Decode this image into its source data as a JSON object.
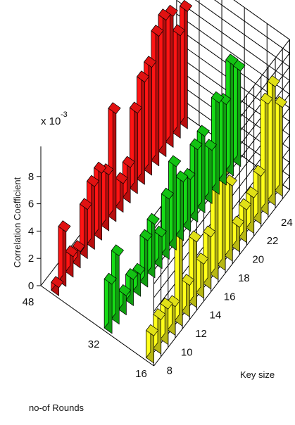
{
  "chart_data": {
    "type": "bar3d",
    "ylabel": "Correlation Coefficient",
    "xlabel": "Key size",
    "depth_label": "no-of Rounds",
    "exponent_base": "x 10",
    "exponent_power": "-3",
    "z_ticks": [
      "0",
      "2",
      "4",
      "6",
      "8"
    ],
    "zlim": [
      0,
      10
    ],
    "x_ticks": [
      "8",
      "10",
      "12",
      "14",
      "16",
      "18",
      "20",
      "22",
      "24"
    ],
    "depth_ticks": [
      "48",
      "32",
      "16"
    ],
    "x_range": [
      7,
      25
    ],
    "grid": true,
    "series": [
      {
        "name": "48",
        "color": "#ff1414",
        "x": [
          7,
          8,
          9,
          10,
          11,
          12,
          13,
          14,
          15,
          16,
          17,
          18,
          19,
          20,
          21,
          22,
          23,
          24,
          25
        ],
        "values": [
          0.6,
          4.0,
          1.5,
          1.2,
          3.6,
          4.6,
          4.9,
          4.1,
          7.9,
          2.1,
          2.6,
          5.9,
          7.5,
          7.9,
          9.5,
          10.0,
          9.6,
          7.5,
          8.6
        ]
      },
      {
        "name": "32",
        "color": "#16dc16",
        "x": [
          7,
          8,
          9,
          10,
          11,
          12,
          13,
          14,
          15,
          16,
          17,
          18,
          19,
          20,
          21,
          22,
          23,
          24,
          25
        ],
        "values": [
          3.6,
          5.0,
          1.4,
          1.9,
          1.6,
          3.4,
          3.9,
          2.3,
          4.4,
          6.1,
          4.3,
          3.8,
          5.3,
          5.6,
          3.9,
          6.7,
          5.9,
          8.1,
          7.0
        ]
      },
      {
        "name": "16",
        "color": "#ffff1a",
        "x": [
          7,
          8,
          9,
          10,
          11,
          12,
          13,
          14,
          15,
          16,
          17,
          18,
          19,
          20,
          21,
          22,
          23,
          24,
          25
        ],
        "values": [
          2.0,
          2.5,
          2.6,
          2.1,
          7.8,
          2.3,
          4.8,
          2.5,
          3.8,
          7.5,
          6.9,
          5.5,
          1.8,
          2.4,
          2.6,
          3.5,
          8.1,
          8.7,
          6.5
        ]
      }
    ]
  }
}
